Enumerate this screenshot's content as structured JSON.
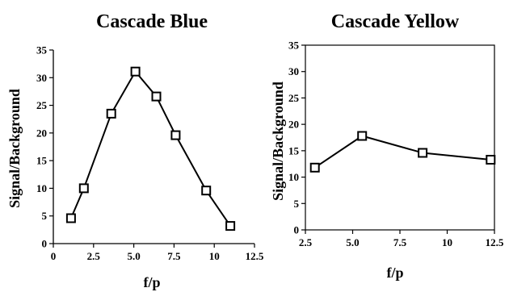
{
  "chart_data": [
    {
      "type": "line",
      "title": "Cascade Blue",
      "xlabel": "f/p",
      "ylabel": "Signal/Background",
      "xlim": [
        0,
        12.5
      ],
      "ylim": [
        0,
        35
      ],
      "xticks": [
        0,
        2.5,
        5.0,
        7.5,
        10,
        12.5
      ],
      "xtick_labels": [
        "0",
        "2.5",
        "5.0",
        "7.5",
        "10",
        "12.5"
      ],
      "yticks": [
        0,
        5,
        10,
        15,
        20,
        25,
        30,
        35
      ],
      "ytick_labels": [
        "0",
        "5",
        "10",
        "15",
        "20",
        "25",
        "30",
        "35"
      ],
      "framed": false,
      "grid": false,
      "marker": "open-square",
      "x": [
        1.1,
        1.9,
        3.6,
        5.1,
        6.4,
        7.6,
        9.5,
        11.0
      ],
      "y": [
        4.6,
        10.0,
        23.5,
        31.1,
        26.6,
        19.6,
        9.6,
        3.2
      ]
    },
    {
      "type": "line",
      "title": "Cascade Yellow",
      "xlabel": "f/p",
      "ylabel": "Signal/Background",
      "xlim": [
        2.5,
        12.5
      ],
      "ylim": [
        0,
        35
      ],
      "xticks": [
        2.5,
        5.0,
        7.5,
        10,
        12.5
      ],
      "xtick_labels": [
        "2.5",
        "5.0",
        "7.5",
        "10",
        "12.5"
      ],
      "yticks": [
        0,
        5,
        10,
        15,
        20,
        25,
        30,
        35
      ],
      "ytick_labels": [
        "0",
        "5",
        "10",
        "15",
        "20",
        "25",
        "30",
        "35"
      ],
      "framed": true,
      "grid": false,
      "marker": "open-square",
      "x": [
        3.0,
        5.5,
        8.7,
        12.3
      ],
      "y": [
        11.8,
        17.8,
        14.6,
        13.3
      ]
    }
  ]
}
